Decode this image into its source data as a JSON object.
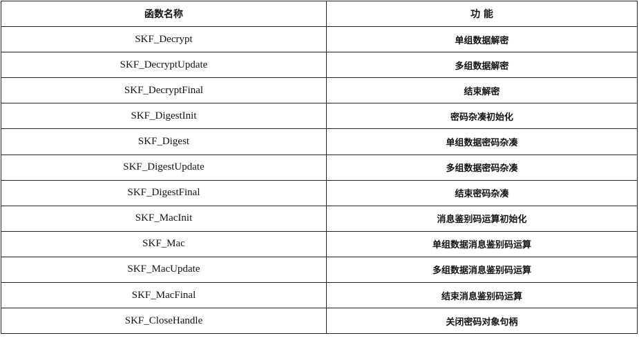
{
  "table": {
    "headers": [
      "函数名称",
      "功 能"
    ],
    "rows": [
      [
        "SKF_Decrypt",
        "单组数据解密"
      ],
      [
        "SKF_DecryptUpdate",
        "多组数据解密"
      ],
      [
        "SKF_DecryptFinal",
        "结束解密"
      ],
      [
        "SKF_DigestInit",
        "密码杂凑初始化"
      ],
      [
        "SKF_Digest",
        "单组数据密码杂凑"
      ],
      [
        "SKF_DigestUpdate",
        "多组数据密码杂凑"
      ],
      [
        "SKF_DigestFinal",
        "结束密码杂凑"
      ],
      [
        "SKF_MacInit",
        "消息鉴别码运算初始化"
      ],
      [
        "SKF_Mac",
        "单组数据消息鉴别码运算"
      ],
      [
        "SKF_MacUpdate",
        "多组数据消息鉴别码运算"
      ],
      [
        "SKF_MacFinal",
        "结束消息鉴别码运算"
      ],
      [
        "SKF_CloseHandle",
        "关闭密码对象句柄"
      ]
    ]
  }
}
